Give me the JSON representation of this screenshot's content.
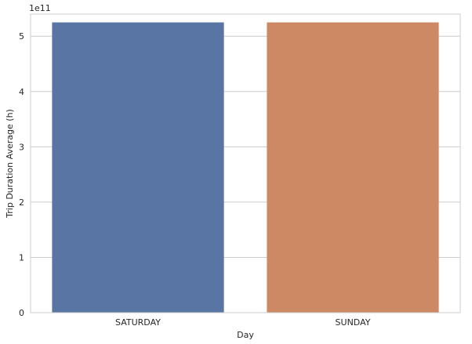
{
  "chart_data": {
    "type": "bar",
    "categories": [
      "SATURDAY",
      "SUNDAY"
    ],
    "values": [
      525000000000,
      525000000000
    ],
    "xlabel": "Day",
    "ylabel": "Trip Duration Average (h)",
    "y_offset_label": "1e11",
    "y_scale": 100000000000,
    "ylim": [
      0,
      540000000000
    ],
    "yticks": [
      0,
      1,
      2,
      3,
      4,
      5
    ],
    "grid": "y",
    "colors": [
      "#5975a4",
      "#cc8963"
    ]
  }
}
